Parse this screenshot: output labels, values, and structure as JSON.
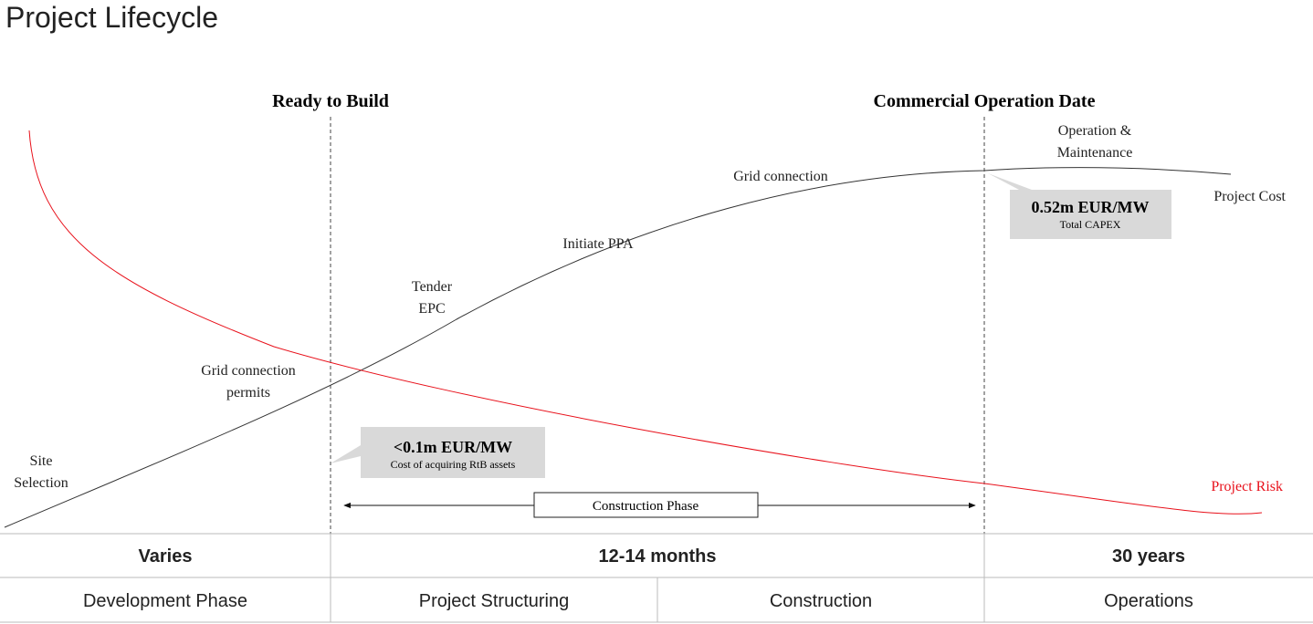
{
  "title": "Project Lifecycle",
  "milestones": [
    "Ready to Build",
    "Commercial Operation Date"
  ],
  "labels": [
    [
      "Site",
      "Selection"
    ],
    [
      "Grid connection",
      "permits"
    ],
    [
      "Tender",
      "EPC"
    ],
    [
      "Initiate PPA"
    ],
    [
      "Grid connection"
    ],
    [
      "Operation &",
      "Maintenance"
    ]
  ],
  "curves": {
    "cost": "Project Cost",
    "risk": "Project Risk"
  },
  "callouts": [
    {
      "value": "<0.1m EUR/MW",
      "note": "Cost of acquiring RtB assets"
    },
    {
      "value": "0.52m EUR/MW",
      "note": "Total CAPEX"
    }
  ],
  "construction_phase": "Construction Phase",
  "table": {
    "rows": [
      [
        "Varies",
        "12-14 months",
        "30 years"
      ],
      [
        "Development Phase",
        "Project Structuring",
        "Construction",
        "Operations"
      ]
    ]
  }
}
